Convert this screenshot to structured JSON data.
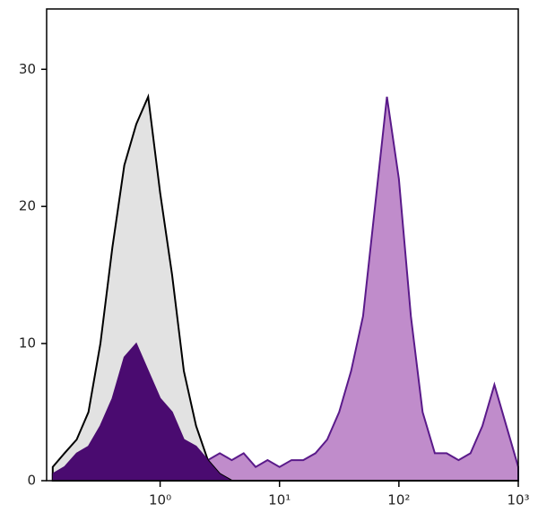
{
  "chart_data": {
    "type": "area",
    "log_x": true,
    "x": [
      0.126,
      0.158,
      0.2,
      0.251,
      0.316,
      0.398,
      0.501,
      0.631,
      0.794,
      1,
      1.26,
      1.58,
      2,
      2.51,
      3.16,
      3.98,
      5.01,
      6.31,
      7.94,
      10,
      12.6,
      15.8,
      20,
      25.1,
      31.6,
      39.8,
      50.1,
      63.1,
      79.4,
      100,
      126,
      158,
      200,
      251,
      316,
      398,
      501,
      631,
      794,
      1000
    ],
    "series": [
      {
        "color": "#c08ccb",
        "line_color": "#5a1a8a",
        "overlap_color": "#4a0b70",
        "values": [
          0.5,
          1,
          2,
          2.5,
          4,
          6,
          9,
          10,
          8,
          6,
          5,
          3,
          2.5,
          1.5,
          2,
          1.5,
          2,
          1,
          1.5,
          1,
          1.5,
          1.5,
          2,
          3,
          5,
          8,
          12,
          20,
          28,
          22,
          12,
          5,
          2,
          2,
          1.5,
          2,
          4,
          7,
          4,
          1
        ]
      },
      {
        "color": "#e2e2e2",
        "line_color": "#000000",
        "values": [
          1,
          2,
          3,
          5,
          10,
          17,
          23,
          26,
          28,
          21,
          15,
          8,
          4,
          1.5,
          0.5,
          0,
          0,
          0,
          0,
          0,
          0,
          0,
          0,
          0,
          0,
          0,
          0,
          0,
          0,
          0,
          0,
          0,
          0,
          0,
          0,
          0,
          0,
          0,
          0,
          0
        ]
      }
    ],
    "xlim": [
      0.112,
      1000
    ],
    "ylim": [
      0,
      34.4
    ],
    "yticks": [
      0,
      10,
      20,
      30
    ],
    "xticks": [
      {
        "value": 1,
        "label": "10⁰"
      },
      {
        "value": 10,
        "label": "10¹"
      },
      {
        "value": 100,
        "label": "10²"
      },
      {
        "value": 1000,
        "label": "10³"
      }
    ]
  }
}
